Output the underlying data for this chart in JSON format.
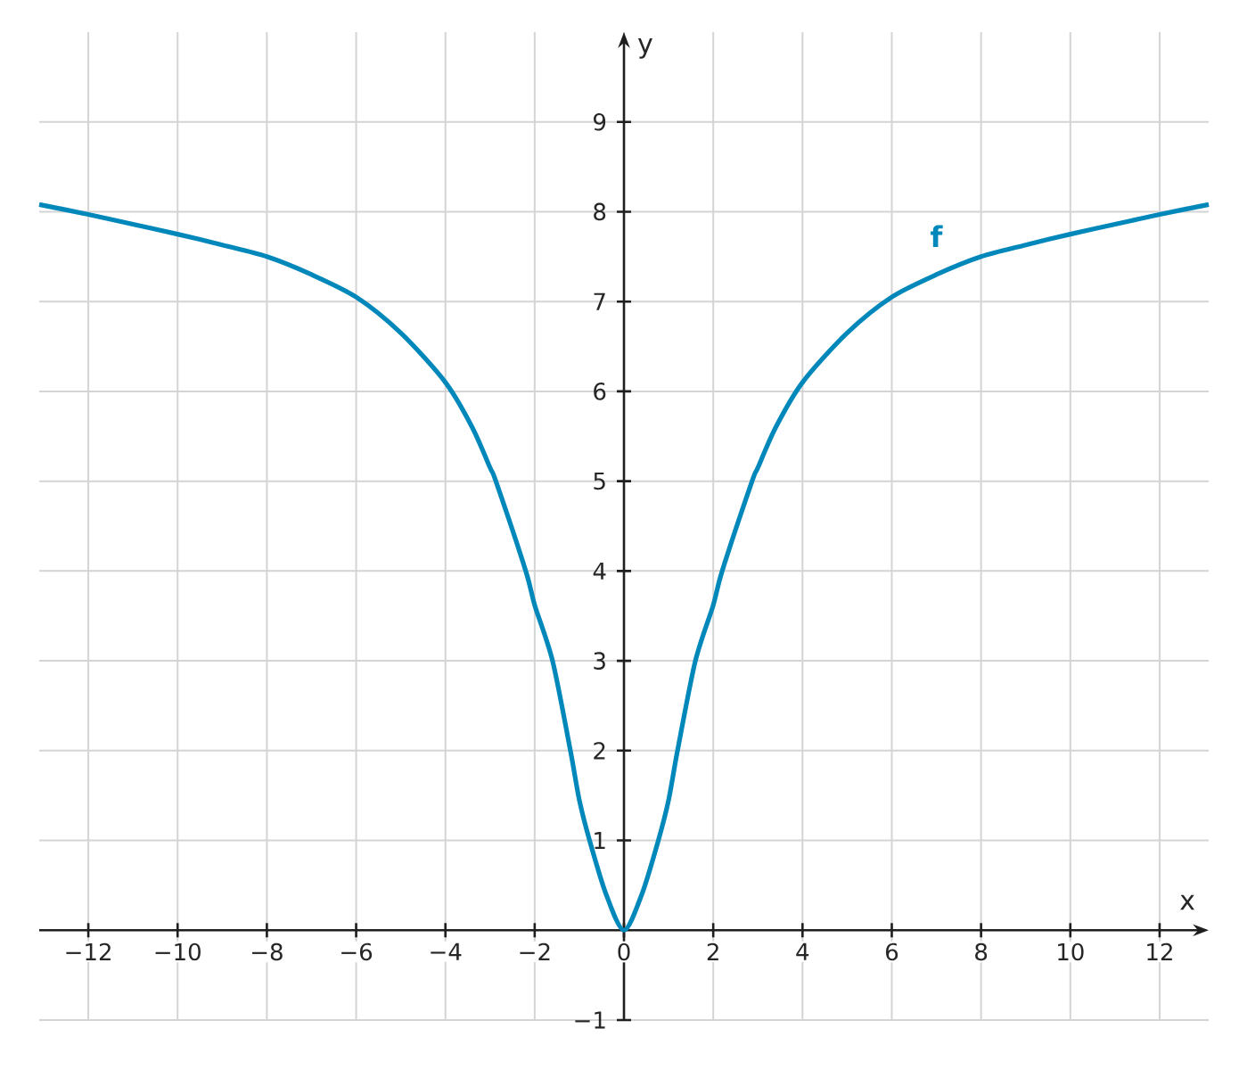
{
  "chart_data": {
    "type": "line",
    "xlabel": "x",
    "ylabel": "y",
    "series": [
      {
        "name": "**f**",
        "color": "#0088bb",
        "x": [
          -13.1,
          -12,
          -11,
          -10,
          -9,
          -8,
          -7,
          -6,
          -5,
          -4,
          -3.4,
          -3,
          -2.87,
          -2.2,
          -2,
          -1.6,
          -1.2,
          -1,
          -0.77,
          -0.4,
          0,
          0.4,
          0.77,
          1,
          1.2,
          1.6,
          2,
          2.2,
          2.87,
          3,
          3.4,
          4,
          5,
          6,
          7,
          8,
          9,
          10,
          11,
          12,
          13.1
        ],
        "values": [
          8.08,
          7.97,
          7.86,
          7.75,
          7.63,
          7.5,
          7.3,
          7.05,
          6.65,
          6.1,
          5.6,
          5.15,
          5,
          4,
          3.62,
          3,
          2,
          1.45,
          1,
          0.4,
          0,
          0.4,
          1,
          1.45,
          2,
          3,
          3.62,
          4,
          5,
          5.15,
          5.6,
          6.1,
          6.65,
          7.05,
          7.3,
          7.5,
          7.63,
          7.75,
          7.86,
          7.97,
          8.08
        ]
      }
    ],
    "xlim": [
      -13.1,
      13.1
    ],
    "ylim": [
      -1,
      10
    ],
    "xticks": [
      {
        "value": -12,
        "label": "−12"
      },
      {
        "value": -10,
        "label": "−10"
      },
      {
        "value": -8,
        "label": "−8"
      },
      {
        "value": -6,
        "label": "−6"
      },
      {
        "value": -4,
        "label": "−4"
      },
      {
        "value": -2,
        "label": "−2"
      },
      0,
      2,
      4,
      6,
      8,
      10,
      12
    ],
    "yticks": [
      {
        "value": -1,
        "label": "−1"
      },
      1,
      2,
      3,
      4,
      5,
      6,
      7,
      8,
      9
    ],
    "grid": true,
    "marker": "none",
    "line_style": "solid"
  }
}
